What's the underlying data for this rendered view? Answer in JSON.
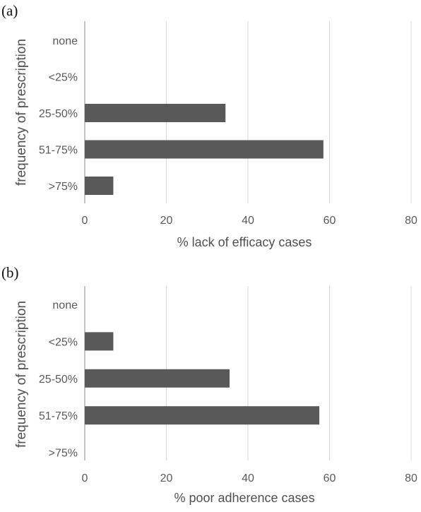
{
  "chart_data": [
    {
      "panel": "(a)",
      "type": "bar",
      "orientation": "horizontal",
      "ylabel": "frequency of prescription",
      "xlabel": "% lack of efficacy cases",
      "categories": [
        "none",
        "<25%",
        "25-50%",
        "51-75%",
        ">75%"
      ],
      "values": [
        0,
        0,
        34.5,
        58.5,
        7
      ],
      "xlim": [
        0,
        80
      ],
      "xticks": [
        "0",
        "20",
        "40",
        "60",
        "80"
      ],
      "grid": "vertical",
      "bar_color": "#595959"
    },
    {
      "panel": "(b)",
      "type": "bar",
      "orientation": "horizontal",
      "ylabel": "frequency of prescription",
      "xlabel": "% poor adherence cases",
      "categories": [
        "none",
        "<25%",
        "25-50%",
        "51-75%",
        ">75%"
      ],
      "values": [
        0,
        7,
        35.5,
        57.5,
        0
      ],
      "xlim": [
        0,
        80
      ],
      "xticks": [
        "0",
        "20",
        "40",
        "60",
        "80"
      ],
      "grid": "vertical",
      "bar_color": "#595959"
    }
  ]
}
